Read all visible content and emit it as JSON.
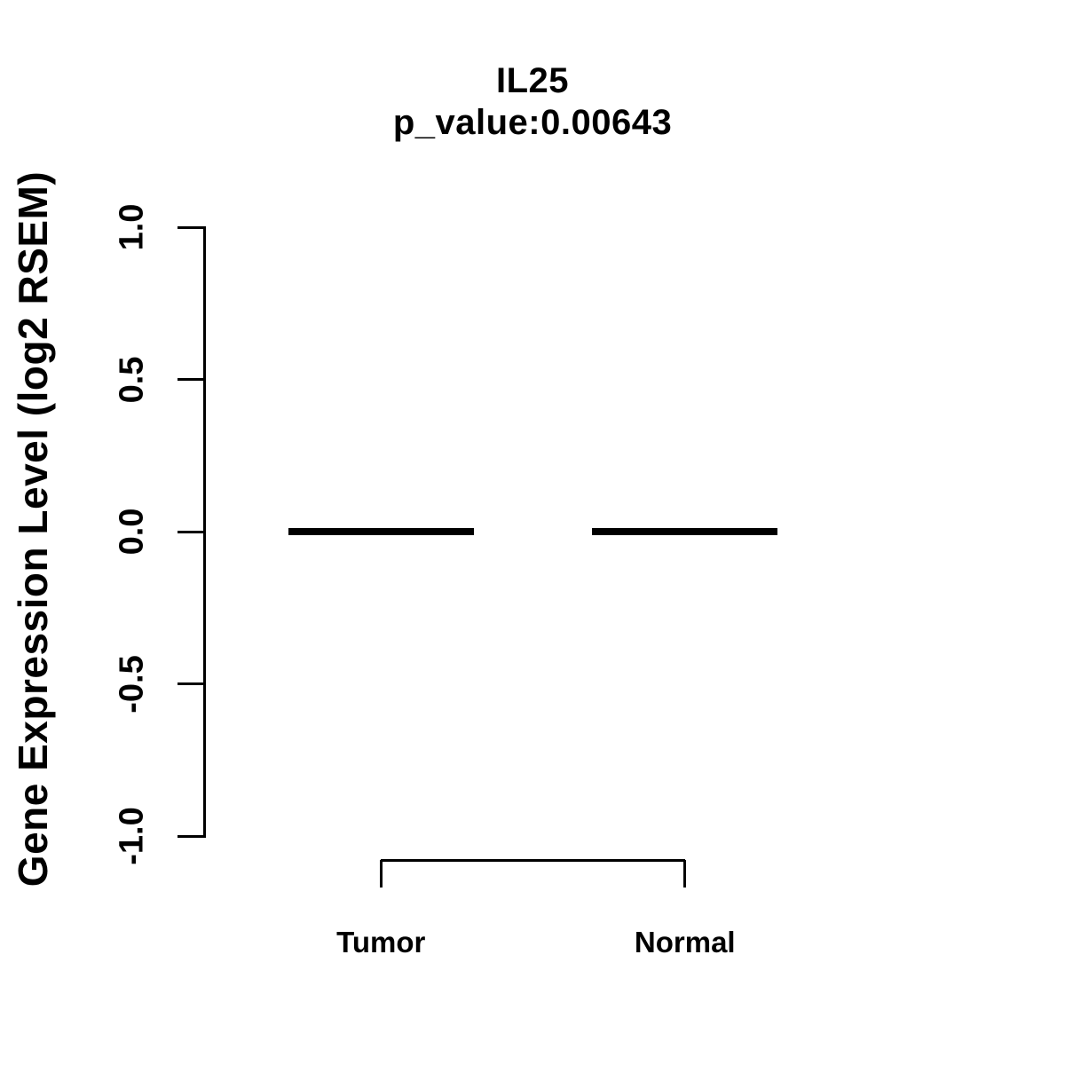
{
  "page": {
    "background_color": "#ffffff",
    "foreground_color": "#000000"
  },
  "chart_data": {
    "type": "boxplot",
    "title": "IL25",
    "subtitle": "p_value:0.00643",
    "gene": "IL25",
    "p_value": 0.00643,
    "ylabel": "Gene Expression Level (log2 RSEM)",
    "xlabel": "",
    "ylim": [
      -1.0,
      1.0
    ],
    "yticks": [
      {
        "value": 1.0,
        "label": "1.0"
      },
      {
        "value": 0.5,
        "label": "0.5"
      },
      {
        "value": 0.0,
        "label": "0.0"
      },
      {
        "value": -0.5,
        "label": "-0.5"
      },
      {
        "value": -1.0,
        "label": "-1.0"
      }
    ],
    "categories": [
      "Tumor",
      "Normal"
    ],
    "series": [
      {
        "name": "Tumor",
        "median": 0.0,
        "q1": 0.0,
        "q3": 0.0,
        "whisker_low": 0.0,
        "whisker_high": 0.0
      },
      {
        "name": "Normal",
        "median": 0.0,
        "q1": 0.0,
        "q3": 0.0,
        "whisker_low": 0.0,
        "whisker_high": 0.0
      }
    ],
    "comparison_bracket": {
      "from": "Tumor",
      "to": "Normal"
    },
    "grid": false,
    "legend": false
  }
}
